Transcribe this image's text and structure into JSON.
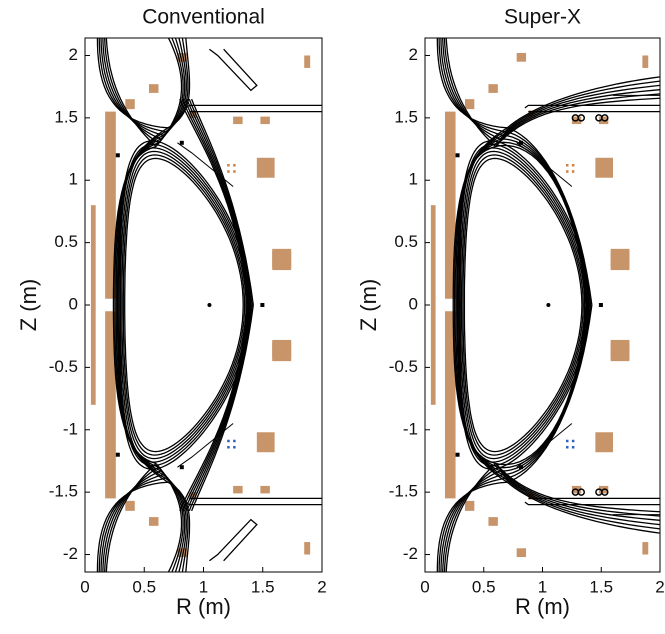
{
  "chart_data": [
    {
      "type": "flux",
      "title": "Conventional",
      "xlabel": "R (m)",
      "ylabel": "Z (m)",
      "xlim": [
        0,
        2
      ],
      "ylim": [
        -2.14,
        2.14
      ],
      "xticks": [
        0,
        0.5,
        1,
        1.5,
        2
      ],
      "yticks": [
        -2,
        -1.5,
        -1,
        -0.5,
        0,
        0.5,
        1,
        1.5,
        2
      ],
      "divertor": "conventional"
    },
    {
      "type": "flux",
      "title": "Super-X",
      "xlabel": "R (m)",
      "ylabel": "Z (m)",
      "xlim": [
        0,
        2
      ],
      "ylim": [
        -2.14,
        2.14
      ],
      "xticks": [
        0,
        0.5,
        1,
        1.5,
        2
      ],
      "yticks": [
        -2,
        -1.5,
        -1,
        -0.5,
        0,
        0.5,
        1,
        1.5,
        2
      ],
      "divertor": "super-x"
    }
  ]
}
